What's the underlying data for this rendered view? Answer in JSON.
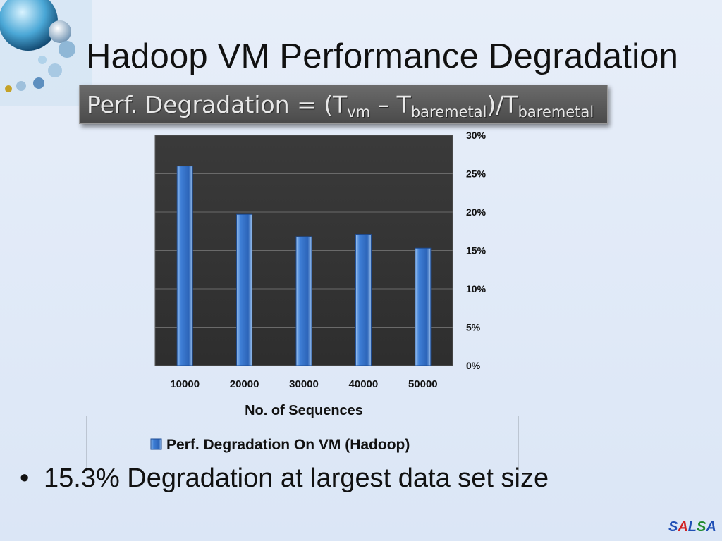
{
  "slide": {
    "title": "Hadoop VM Performance Degradation",
    "formula": {
      "prefix": "Perf. Degradation = (T",
      "sub1": "vm",
      "middle": " – T",
      "sub2": "baremetal",
      "after": ")/T",
      "sub3": "baremetal"
    },
    "bullet": "15.3% Degradation at largest data set size",
    "brand_letters": [
      {
        "char": "S",
        "color": "#1f4fb5"
      },
      {
        "char": "A",
        "color": "#d22020"
      },
      {
        "char": "L",
        "color": "#1f4fb5"
      },
      {
        "char": "S",
        "color": "#1f8a2c"
      },
      {
        "char": "A",
        "color": "#1f4fb5"
      }
    ]
  },
  "chart_data": {
    "type": "bar",
    "categories": [
      "10000",
      "20000",
      "30000",
      "40000",
      "50000"
    ],
    "series": [
      {
        "name": "Perf. Degradation On VM (Hadoop)",
        "values": [
          26.0,
          19.7,
          16.8,
          17.1,
          15.3
        ],
        "color": "#3a75d0"
      }
    ],
    "xlabel": "No. of Sequences",
    "ylabel": "",
    "ylim": [
      0,
      30
    ],
    "yticks": [
      "0%",
      "5%",
      "10%",
      "15%",
      "20%",
      "25%",
      "30%"
    ],
    "ytick_values": [
      0,
      5,
      10,
      15,
      20,
      25,
      30
    ],
    "grid": true,
    "y_axis_side": "right",
    "legend": "bottom",
    "plot_background": "#3a3a3a"
  }
}
